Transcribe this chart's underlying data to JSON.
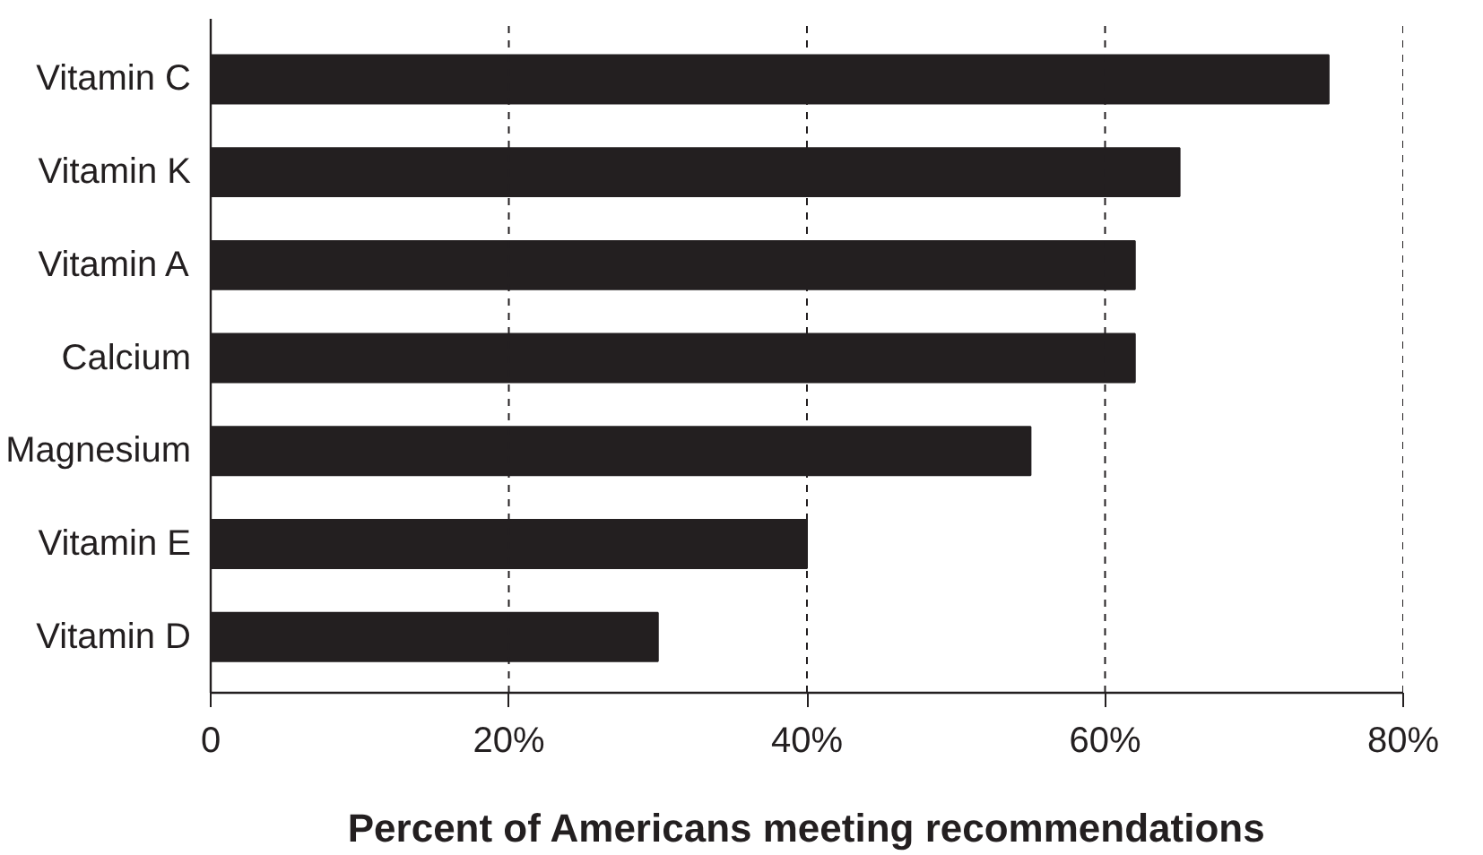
{
  "chart_data": {
    "type": "bar",
    "orientation": "horizontal",
    "xlabel": "Percent of Americans meeting recommendations",
    "categories": [
      "Vitamin C",
      "Vitamin K",
      "Vitamin A",
      "Calcium",
      "Magnesium",
      "Vitamin E",
      "Vitamin D"
    ],
    "values": [
      75,
      65,
      62,
      62,
      55,
      40,
      30
    ],
    "color": "#231f20",
    "xlim": [
      0,
      80
    ],
    "xticks": [
      0,
      {
        "value": 20,
        "label": "20%"
      },
      {
        "value": 40,
        "label": "40%"
      },
      {
        "value": 60,
        "label": "60%"
      },
      {
        "value": 80,
        "label": "80%"
      }
    ],
    "grid": "x"
  }
}
